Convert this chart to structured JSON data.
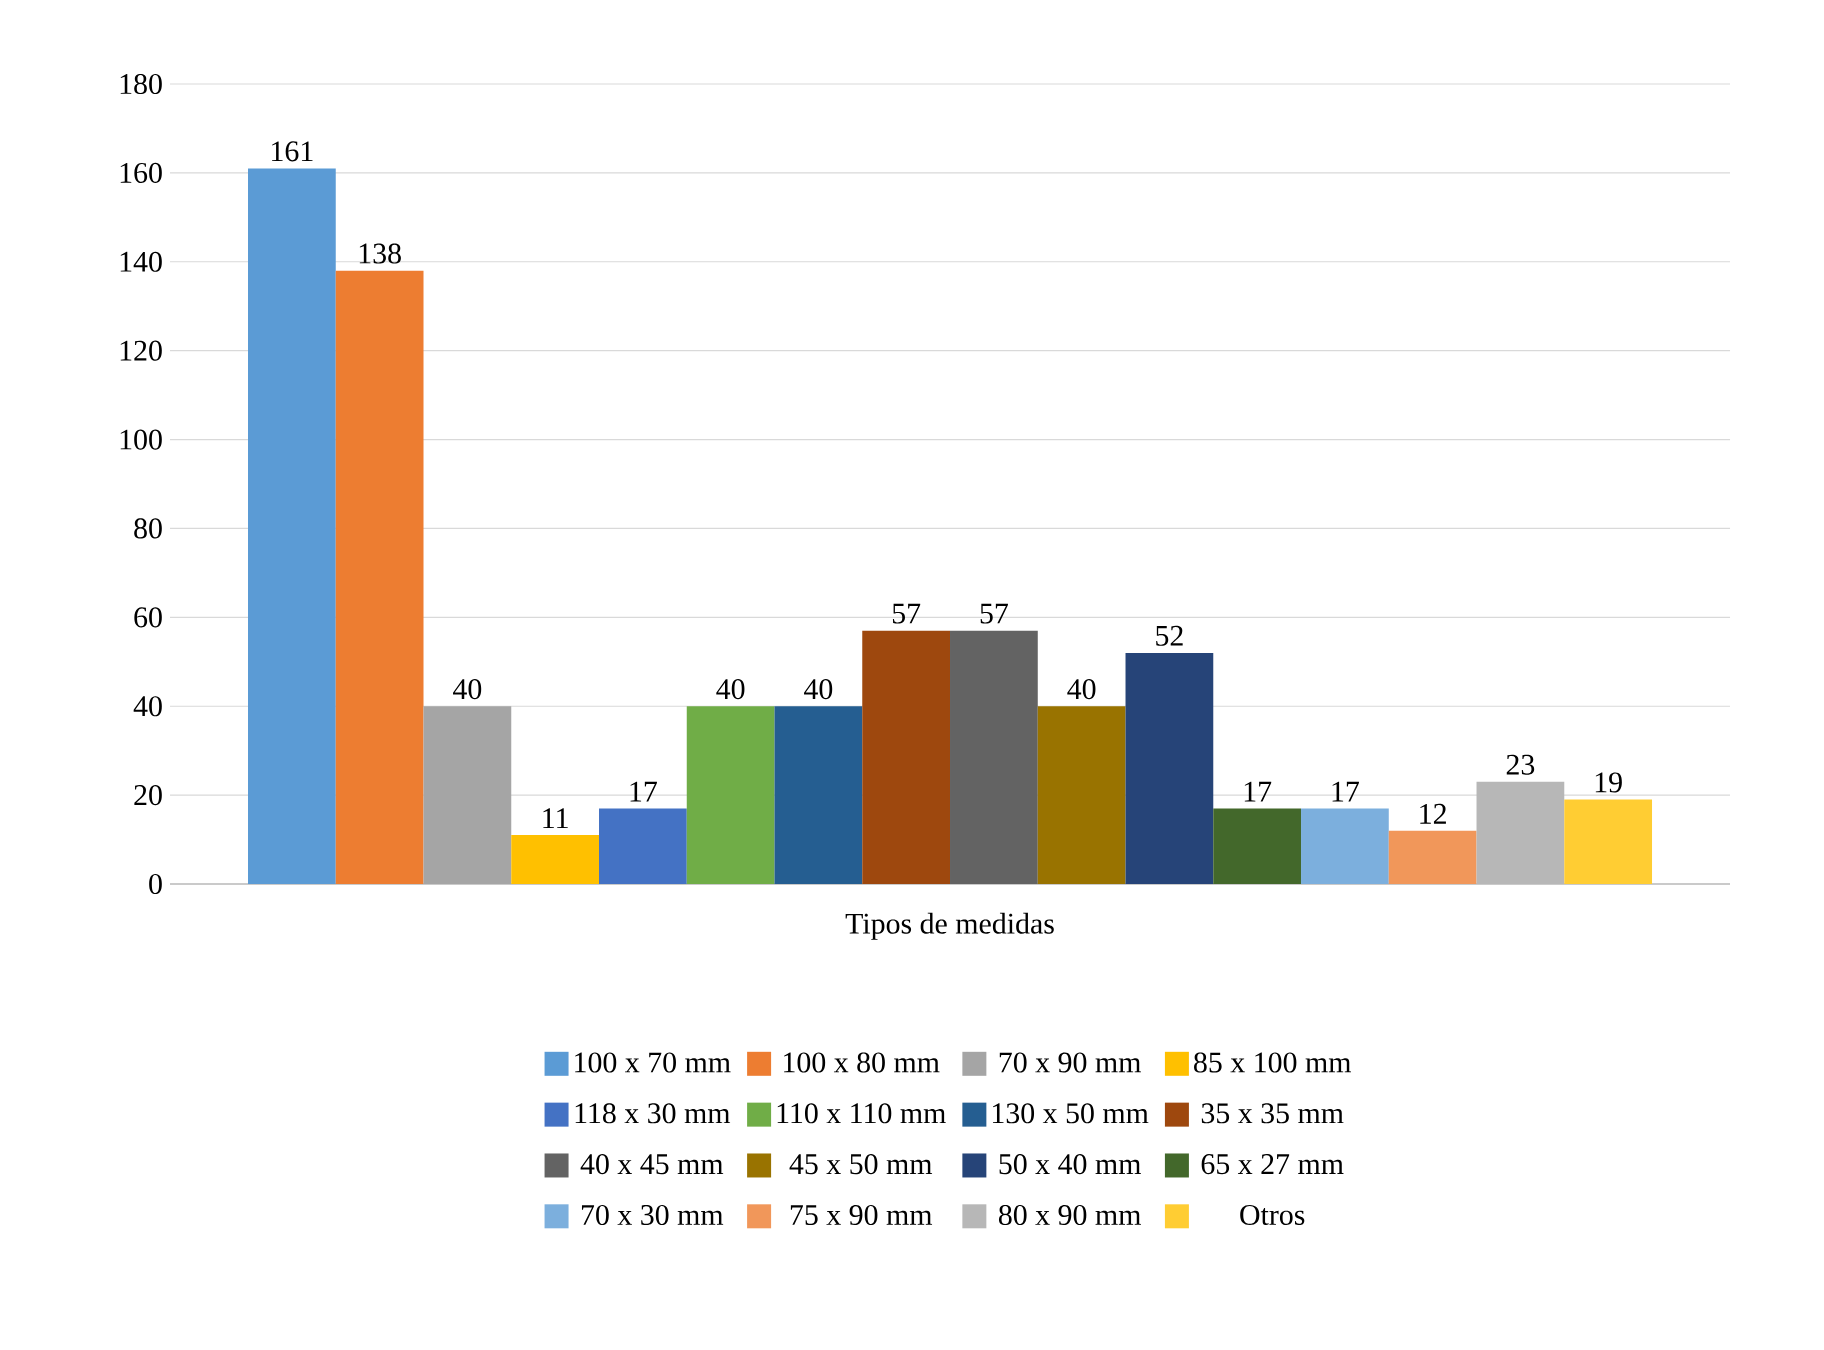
{
  "chart_data": {
    "type": "bar",
    "xlabel": "Tipos de medidas",
    "categories": [
      null
    ],
    "series": [
      {
        "name": "100 x 70 mm",
        "color": "#5b9bd5",
        "values": [
          161
        ]
      },
      {
        "name": "100 x 80 mm",
        "color": "#ed7d31",
        "values": [
          138
        ]
      },
      {
        "name": "70 x 90 mm",
        "color": "#a5a5a5",
        "values": [
          40
        ]
      },
      {
        "name": "85 x 100 mm",
        "color": "#ffc000",
        "values": [
          11
        ]
      },
      {
        "name": "118 x 30 mm",
        "color": "#4472c4",
        "values": [
          17
        ]
      },
      {
        "name": "110 x 110 mm",
        "color": "#70ad47",
        "values": [
          40
        ]
      },
      {
        "name": "130 x 50 mm",
        "color": "#255e91",
        "values": [
          40
        ]
      },
      {
        "name": "35 x 35 mm",
        "color": "#9e480e",
        "values": [
          57
        ]
      },
      {
        "name": "40 x 45 mm",
        "color": "#636363",
        "values": [
          57
        ]
      },
      {
        "name": "45 x 50 mm",
        "color": "#997300",
        "values": [
          40
        ]
      },
      {
        "name": "50 x 40 mm",
        "color": "#264478",
        "values": [
          52
        ]
      },
      {
        "name": "65 x 27 mm",
        "color": "#43682b",
        "values": [
          17
        ]
      },
      {
        "name": "70 x 30 mm",
        "color": "#7cafdd",
        "values": [
          17
        ]
      },
      {
        "name": "75 x 90 mm",
        "color": "#f1975a",
        "values": [
          12
        ]
      },
      {
        "name": "80 x 90 mm",
        "color": "#b7b7b7",
        "values": [
          23
        ]
      },
      {
        "name": "Otros",
        "color": "#ffcd33",
        "values": [
          19
        ]
      }
    ],
    "ylim": [
      0,
      180
    ],
    "yticks": [
      0,
      20,
      40,
      60,
      80,
      100,
      120,
      140,
      160,
      180
    ],
    "grid": "y",
    "legend": "bottom",
    "data_labels": true
  }
}
